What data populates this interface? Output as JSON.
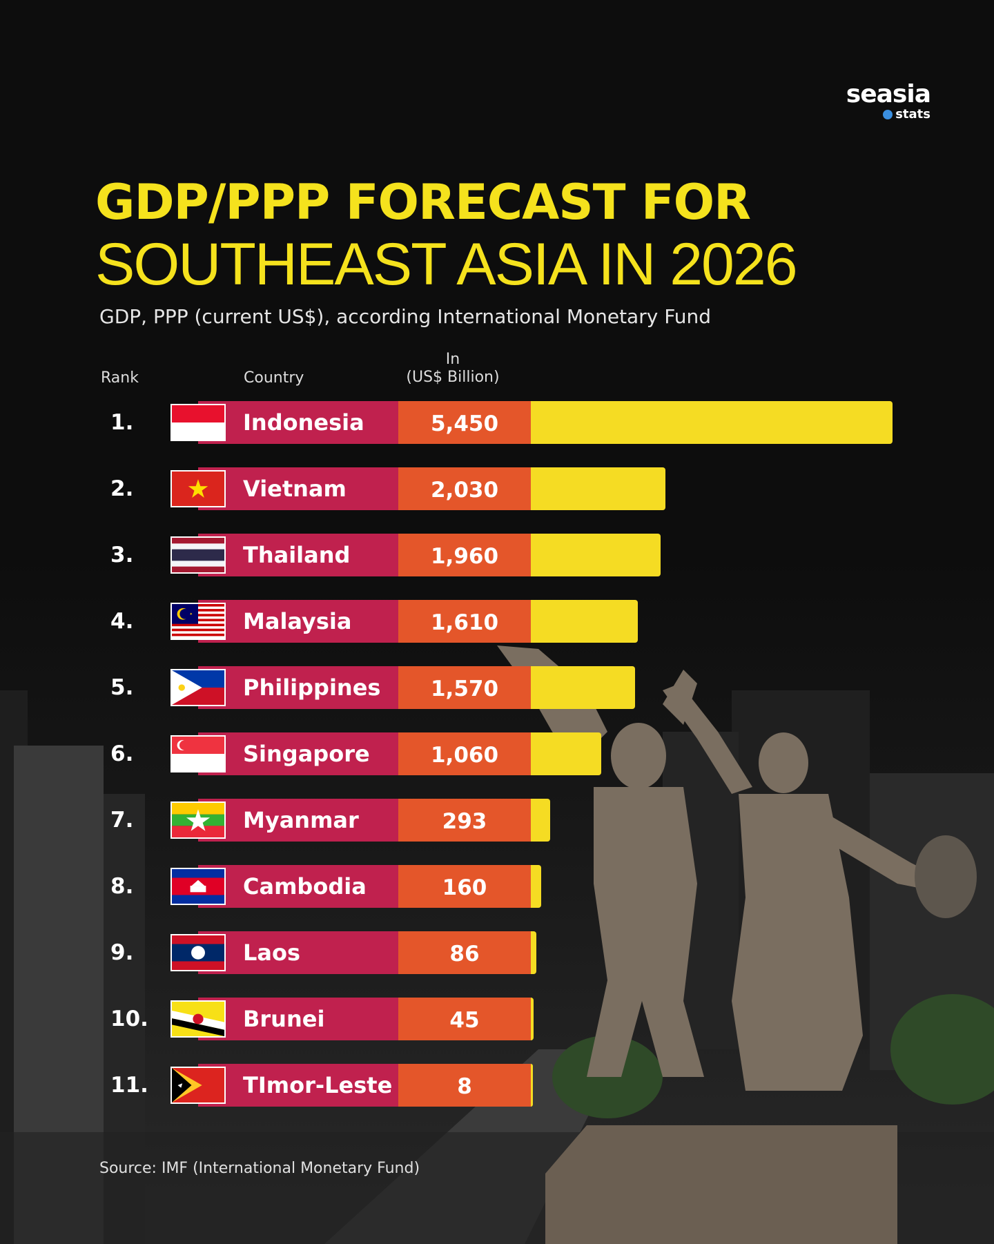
{
  "brand": {
    "name": "seasia",
    "sub": "stats"
  },
  "header": {
    "title_line1": "GDP/PPP FORECAST FOR",
    "title_line2": "SOUTHEAST ASIA IN 2026",
    "subtitle": "GDP, PPP (current US$), according International Monetary Fund"
  },
  "columns": {
    "rank": "Rank",
    "country": "Country",
    "value_line1": "In",
    "value_line2": "(US$ Billion)"
  },
  "source": "Source: IMF (International Monetary Fund)",
  "colors": {
    "title": "#f5e21d",
    "country_band": "#c0214e",
    "value_band": "#e4562a",
    "bar": "#f5dc23"
  },
  "chart_data": {
    "type": "bar",
    "orientation": "horizontal",
    "title": "GDP/PPP FORECAST FOR SOUTHEAST ASIA IN 2026",
    "subtitle": "GDP, PPP (current US$), according International Monetary Fund",
    "value_unit": "(US$ Billion)",
    "categories": [
      "Indonesia",
      "Vietnam",
      "Thailand",
      "Malaysia",
      "Philippines",
      "Singapore",
      "Myanmar",
      "Cambodia",
      "Laos",
      "Brunei",
      "TImor-Leste"
    ],
    "ranks": [
      "1.",
      "2.",
      "3.",
      "4.",
      "5.",
      "6.",
      "7.",
      "8.",
      "9.",
      "10.",
      "11."
    ],
    "value_labels": [
      "5,450",
      "2,030",
      "1,960",
      "1,610",
      "1,570",
      "1,060",
      "293",
      "160",
      "86",
      "45",
      "8"
    ],
    "values": [
      5450,
      2030,
      1960,
      1610,
      1570,
      1060,
      293,
      160,
      86,
      45,
      8
    ],
    "flags": [
      "indonesia-flag",
      "vietnam-flag",
      "thailand-flag",
      "malaysia-flag",
      "philippines-flag",
      "singapore-flag",
      "myanmar-flag",
      "cambodia-flag",
      "laos-flag",
      "brunei-flag",
      "timor-leste-flag"
    ]
  }
}
